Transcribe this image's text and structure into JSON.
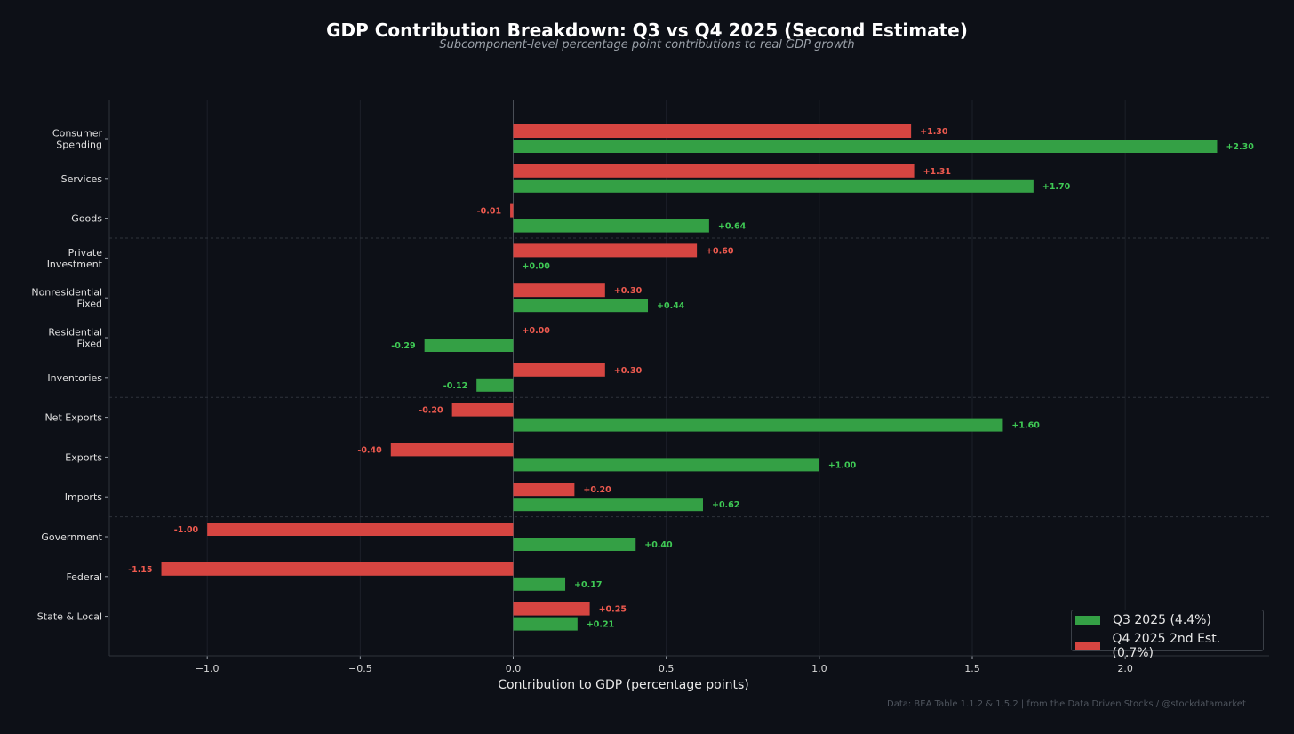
{
  "title": "GDP Contribution Breakdown: Q3 vs Q4 2025 (Second Estimate)",
  "subtitle": "Subcomponent-level percentage point contributions to real GDP growth",
  "footer": "Data: BEA Table 1.1.2 & 1.5.2 | from the Data Driven Stocks / @stockdatamarket",
  "colors": {
    "q3": "#34a045",
    "q4": "#d64541",
    "q3_label": "#3fca55",
    "q4_label": "#ee5a4f"
  },
  "chart_data": {
    "type": "bar",
    "orientation": "horizontal",
    "title": "GDP Contribution Breakdown: Q3 vs Q4 2025 (Second Estimate)",
    "xlabel": "Contribution to GDP (percentage points)",
    "ylabel": "",
    "xlim": [
      -1.32,
      2.47
    ],
    "xticks": [
      -1.0,
      -0.5,
      0.0,
      0.5,
      1.0,
      1.5,
      2.0
    ],
    "xtick_labels": [
      "−1.0",
      "−0.5",
      "0.0",
      "0.5",
      "1.0",
      "1.5",
      "2.0"
    ],
    "grid": true,
    "legend_position": "bottom-right",
    "group_separators_after": [
      "Goods",
      "Inventories",
      "Imports"
    ],
    "categories": [
      "Consumer\nSpending",
      "Services",
      "Goods",
      "Private\nInvestment",
      "Nonresidential\nFixed",
      "Residential\nFixed",
      "Inventories",
      "Net Exports",
      "Exports",
      "Imports",
      "Government",
      "Federal",
      "State & Local"
    ],
    "series": [
      {
        "name": "Q3 2025 (4.4%)",
        "values": [
          2.3,
          1.7,
          0.64,
          0.0,
          0.44,
          -0.29,
          -0.12,
          1.6,
          1.0,
          0.62,
          0.4,
          0.17,
          0.21
        ],
        "labels": [
          "+2.30",
          "+1.70",
          "+0.64",
          "+0.00",
          "+0.44",
          "-0.29",
          "-0.12",
          "+1.60",
          "+1.00",
          "+0.62",
          "+0.40",
          "+0.17",
          "+0.21"
        ]
      },
      {
        "name": "Q4 2025 2nd Est. (0.7%)",
        "values": [
          1.3,
          1.31,
          -0.01,
          0.6,
          0.3,
          0.0,
          0.3,
          -0.2,
          -0.4,
          0.2,
          -1.0,
          -1.15,
          0.25
        ],
        "labels": [
          "+1.30",
          "+1.31",
          "-0.01",
          "+0.60",
          "+0.30",
          "+0.00",
          "+0.30",
          "-0.20",
          "-0.40",
          "+0.20",
          "-1.00",
          "-1.15",
          "+0.25"
        ]
      }
    ]
  }
}
